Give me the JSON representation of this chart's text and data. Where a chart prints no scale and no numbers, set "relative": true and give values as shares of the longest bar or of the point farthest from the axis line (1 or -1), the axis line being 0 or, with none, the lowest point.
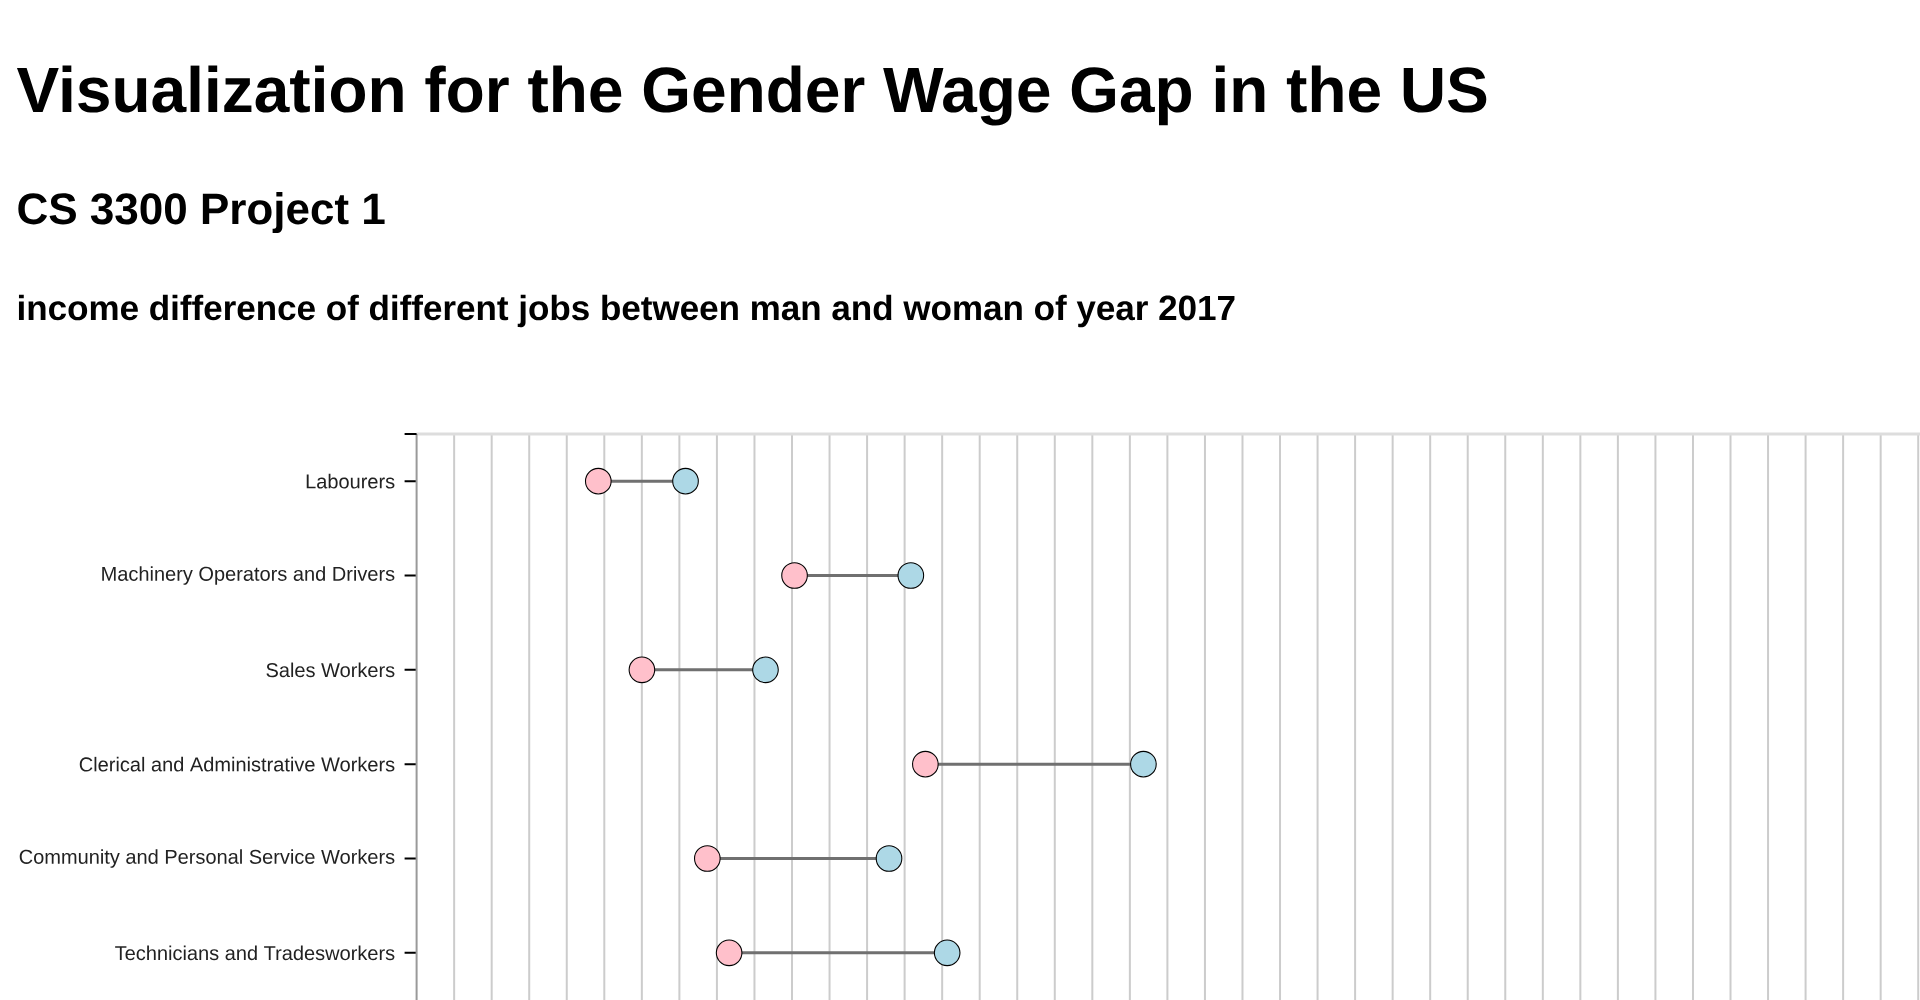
{
  "chart_data": {
    "type": "scatter",
    "title": "Visualization for the Gender Wage Gap in the US",
    "subtitle": "CS 3300 Project 1",
    "annotations": [
      "income difference of different jobs between man and woman of year 2017"
    ],
    "orientation": "horizontal",
    "relative": true,
    "categories": [
      "Labourers",
      "Machinery Operators and Drivers",
      "Sales Workers",
      "Clerical and Administrative Workers",
      "Community and Personal Service Workers",
      "Technicians and Tradesworkers"
    ],
    "series": [
      {
        "color": "#ffc0cb",
        "values": [
          0.25,
          0.52,
          0.31,
          0.7,
          0.4,
          0.43
        ]
      },
      {
        "color": "#add8e6",
        "values": [
          0.37,
          0.68,
          0.48,
          1,
          0.65,
          0.73
        ]
      }
    ],
    "grid": "x",
    "marker": "circle"
  }
}
